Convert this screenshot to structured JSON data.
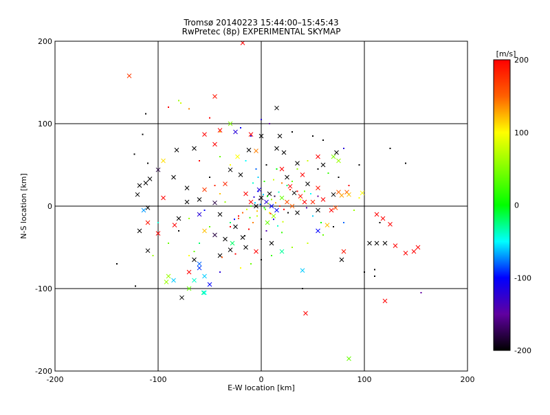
{
  "chart_data": {
    "type": "scatter",
    "title": "Tromsø 20140223 15:44:00–15:45:43",
    "subtitle": "RwPretec (8p) EXPERIMENTAL SKYMAP",
    "xlabel": "E-W location [km]",
    "ylabel": "N-S location [km]",
    "xlim": [
      -200,
      200
    ],
    "ylim": [
      -200,
      200
    ],
    "xticks": [
      "-200",
      "-100",
      "0",
      "100",
      "200"
    ],
    "yticks": [
      "-200",
      "-100",
      "0",
      "100",
      "200"
    ],
    "grid": [
      -100,
      0,
      100
    ],
    "colorbar": {
      "label": "[m/s]",
      "range": [
        -200,
        200
      ],
      "ticks": [
        "200",
        "100",
        "0",
        "-100",
        "-200"
      ],
      "colormap": "rainbow (black-purple-blue-cyan-green-yellow-orange-red)"
    },
    "series": [
      {
        "marker": "x",
        "points": [
          [
            -128,
            158,
            170
          ],
          [
            -45,
            133,
            190
          ],
          [
            -18,
            198,
            200
          ],
          [
            15,
            119,
            -200
          ],
          [
            -95,
            55,
            110
          ],
          [
            -82,
            68,
            -200
          ],
          [
            -65,
            70,
            -200
          ],
          [
            -108,
            33,
            -200
          ],
          [
            -112,
            28,
            -200
          ],
          [
            -120,
            14,
            -200
          ],
          [
            -118,
            25,
            -200
          ],
          [
            -100,
            44,
            -180
          ],
          [
            -85,
            35,
            -200
          ],
          [
            -72,
            22,
            -200
          ],
          [
            -60,
            8,
            -200
          ],
          [
            -55,
            20,
            170
          ],
          [
            -40,
            -10,
            -200
          ],
          [
            -35,
            27,
            180
          ],
          [
            -45,
            4,
            -180
          ],
          [
            -30,
            44,
            -200
          ],
          [
            -23,
            60,
            100
          ],
          [
            -20,
            38,
            -200
          ],
          [
            -12,
            68,
            -200
          ],
          [
            -5,
            67,
            140
          ],
          [
            -25,
            -25,
            -200
          ],
          [
            -35,
            -40,
            -200
          ],
          [
            -15,
            -50,
            -200
          ],
          [
            -30,
            -53,
            -200
          ],
          [
            -45,
            -35,
            -180
          ],
          [
            -55,
            -30,
            120
          ],
          [
            -60,
            -10,
            -120
          ],
          [
            -110,
            -54,
            -200
          ],
          [
            -114,
            -5,
            -70
          ],
          [
            -118,
            -30,
            -200
          ],
          [
            -110,
            -20,
            190
          ],
          [
            -100,
            -33,
            200
          ],
          [
            -84,
            -23,
            200
          ],
          [
            -65,
            -65,
            -200
          ],
          [
            -60,
            -75,
            -90
          ],
          [
            -55,
            -85,
            -60
          ],
          [
            -65,
            -90,
            -40
          ],
          [
            -70,
            -100,
            40
          ],
          [
            -50,
            -95,
            -100
          ],
          [
            -90,
            -85,
            60
          ],
          [
            -92,
            -92,
            60
          ],
          [
            -85,
            -90,
            -60
          ],
          [
            -55,
            -105,
            -50
          ],
          [
            -77,
            -111,
            -200
          ],
          [
            -56,
            -105,
            -30
          ],
          [
            -70,
            -80,
            200
          ],
          [
            -60,
            -70,
            -80
          ],
          [
            -40,
            -60,
            -200
          ],
          [
            -28,
            -45,
            -20
          ],
          [
            -18,
            -38,
            -200
          ],
          [
            -5,
            -55,
            200
          ],
          [
            10,
            -45,
            -200
          ],
          [
            20,
            -55,
            -30
          ],
          [
            40,
            -78,
            -60
          ],
          [
            43,
            -130,
            200
          ],
          [
            85,
            -185,
            40
          ],
          [
            78,
            -65,
            -200
          ],
          [
            80,
            -55,
            190
          ],
          [
            105,
            -45,
            -200
          ],
          [
            112,
            -45,
            -200
          ],
          [
            120,
            -45,
            -200
          ],
          [
            130,
            -48,
            200
          ],
          [
            140,
            -57,
            200
          ],
          [
            148,
            -55,
            200
          ],
          [
            152,
            -50,
            200
          ],
          [
            120,
            -115,
            200
          ],
          [
            125,
            -22,
            200
          ],
          [
            118,
            -15,
            200
          ],
          [
            112,
            -10,
            200
          ],
          [
            55,
            -30,
            -100
          ],
          [
            64,
            -23,
            120
          ],
          [
            60,
            8,
            200
          ],
          [
            70,
            14,
            -200
          ],
          [
            75,
            17,
            150
          ],
          [
            78,
            13,
            130
          ],
          [
            83,
            17,
            150
          ],
          [
            85,
            14,
            120
          ],
          [
            98,
            16,
            100
          ],
          [
            68,
            -5,
            200
          ],
          [
            72,
            -2,
            160
          ],
          [
            55,
            22,
            190
          ],
          [
            45,
            27,
            -200
          ],
          [
            28,
            24,
            200
          ],
          [
            32,
            16,
            -200
          ],
          [
            38,
            12,
            190
          ],
          [
            42,
            5,
            200
          ],
          [
            50,
            5,
            180
          ],
          [
            55,
            -5,
            -200
          ],
          [
            25,
            35,
            -200
          ],
          [
            20,
            45,
            200
          ],
          [
            35,
            52,
            -200
          ],
          [
            40,
            38,
            200
          ],
          [
            55,
            60,
            200
          ],
          [
            60,
            50,
            -200
          ],
          [
            70,
            60,
            50
          ],
          [
            75,
            55,
            60
          ],
          [
            73,
            65,
            -200
          ],
          [
            22,
            65,
            -200
          ],
          [
            15,
            70,
            -200
          ],
          [
            18,
            85,
            -200
          ],
          [
            0,
            85,
            -200
          ],
          [
            -10,
            87,
            200
          ],
          [
            -40,
            92,
            200
          ],
          [
            -45,
            75,
            200
          ],
          [
            -55,
            87,
            200
          ],
          [
            -30,
            100,
            50
          ],
          [
            -25,
            90,
            -120
          ],
          [
            -110,
            -2,
            -200
          ],
          [
            -80,
            -15,
            -200
          ],
          [
            -72,
            5,
            -200
          ],
          [
            -95,
            10,
            200
          ],
          [
            0,
            10,
            -200
          ],
          [
            5,
            5,
            -120
          ],
          [
            10,
            0,
            -100
          ],
          [
            -5,
            0,
            -200
          ],
          [
            15,
            -5,
            -100
          ],
          [
            20,
            10,
            40
          ],
          [
            25,
            5,
            160
          ],
          [
            8,
            15,
            -200
          ],
          [
            -10,
            5,
            200
          ],
          [
            12,
            -12,
            60
          ],
          [
            30,
            0,
            150
          ],
          [
            35,
            -8,
            -200
          ],
          [
            -2,
            20,
            -120
          ],
          [
            6,
            -20,
            40
          ],
          [
            -15,
            15,
            200
          ]
        ]
      },
      {
        "marker": "dot",
        "points": [
          [
            -112,
            112,
            -200
          ],
          [
            -115,
            87,
            -200
          ],
          [
            -123,
            63,
            -200
          ],
          [
            -110,
            52,
            -200
          ],
          [
            -80,
            128,
            60
          ],
          [
            -78,
            125,
            80
          ],
          [
            -70,
            118,
            140
          ],
          [
            -90,
            120,
            200
          ],
          [
            -50,
            107,
            200
          ],
          [
            -40,
            90,
            120
          ],
          [
            -20,
            95,
            -100
          ],
          [
            -10,
            85,
            -120
          ],
          [
            0,
            105,
            -120
          ],
          [
            8,
            100,
            -150
          ],
          [
            30,
            90,
            -200
          ],
          [
            50,
            85,
            -200
          ],
          [
            60,
            80,
            -200
          ],
          [
            80,
            70,
            -120
          ],
          [
            95,
            50,
            -200
          ],
          [
            125,
            70,
            -200
          ],
          [
            140,
            52,
            -200
          ],
          [
            -140,
            -70,
            -200
          ],
          [
            -122,
            -97,
            -200
          ],
          [
            40,
            -100,
            -200
          ],
          [
            100,
            -80,
            -200
          ],
          [
            110,
            -85,
            -200
          ],
          [
            110,
            -77,
            -200
          ],
          [
            115,
            -20,
            -200
          ],
          [
            155,
            -105,
            -150
          ],
          [
            -40,
            -80,
            -120
          ],
          [
            -20,
            -75,
            100
          ],
          [
            -10,
            -70,
            40
          ],
          [
            0,
            -65,
            -200
          ],
          [
            10,
            -60,
            20
          ],
          [
            30,
            -50,
            60
          ],
          [
            45,
            -45,
            80
          ],
          [
            -30,
            -25,
            200
          ],
          [
            -22,
            -15,
            160
          ],
          [
            -50,
            -25,
            40
          ],
          [
            -70,
            -15,
            60
          ],
          [
            -80,
            -30,
            -200
          ],
          [
            -90,
            -45,
            40
          ],
          [
            -100,
            -20,
            -40
          ],
          [
            -105,
            -60,
            60
          ],
          [
            -60,
            55,
            200
          ],
          [
            -40,
            60,
            40
          ],
          [
            -30,
            50,
            100
          ],
          [
            -15,
            55,
            -50
          ],
          [
            -5,
            45,
            -80
          ],
          [
            5,
            50,
            -200
          ],
          [
            15,
            45,
            0
          ],
          [
            35,
            45,
            60
          ],
          [
            45,
            55,
            80
          ],
          [
            55,
            45,
            -200
          ],
          [
            65,
            40,
            20
          ],
          [
            75,
            35,
            -200
          ],
          [
            85,
            25,
            200
          ],
          [
            95,
            10,
            100
          ],
          [
            90,
            -5,
            60
          ],
          [
            80,
            -20,
            -80
          ],
          [
            70,
            -25,
            -200
          ],
          [
            60,
            -35,
            40
          ],
          [
            -3,
            35,
            -60
          ],
          [
            -8,
            28,
            -40
          ],
          [
            3,
            30,
            20
          ],
          [
            12,
            32,
            80
          ],
          [
            20,
            28,
            140
          ],
          [
            28,
            20,
            180
          ],
          [
            35,
            18,
            200
          ],
          [
            42,
            18,
            40
          ],
          [
            48,
            15,
            -50
          ],
          [
            55,
            12,
            -150
          ],
          [
            -3,
            18,
            -100
          ],
          [
            2,
            14,
            -60
          ],
          [
            6,
            12,
            0
          ],
          [
            10,
            8,
            60
          ],
          [
            14,
            4,
            120
          ],
          [
            18,
            0,
            180
          ],
          [
            22,
            -4,
            200
          ],
          [
            26,
            -8,
            -200
          ],
          [
            -2,
            8,
            -180
          ],
          [
            -6,
            4,
            -60
          ],
          [
            -10,
            0,
            20
          ],
          [
            -14,
            -4,
            80
          ],
          [
            -18,
            -8,
            150
          ],
          [
            -22,
            -12,
            200
          ],
          [
            -26,
            -16,
            -100
          ],
          [
            -30,
            -20,
            -20
          ],
          [
            4,
            -4,
            40
          ],
          [
            8,
            -8,
            100
          ],
          [
            12,
            -16,
            -120
          ],
          [
            16,
            -24,
            -40
          ],
          [
            20,
            -32,
            20
          ],
          [
            -4,
            -12,
            80
          ],
          [
            -8,
            -20,
            140
          ],
          [
            -12,
            -28,
            200
          ],
          [
            -16,
            -36,
            -200
          ],
          [
            25,
            25,
            -20
          ],
          [
            30,
            30,
            40
          ],
          [
            38,
            8,
            100
          ],
          [
            44,
            -2,
            -140
          ],
          [
            50,
            -12,
            -60
          ],
          [
            58,
            -20,
            0
          ],
          [
            -35,
            5,
            60
          ],
          [
            -40,
            15,
            120
          ],
          [
            -45,
            25,
            180
          ],
          [
            -50,
            35,
            -200
          ],
          [
            -55,
            -5,
            -100
          ],
          [
            -60,
            -45,
            -20
          ],
          [
            -65,
            -55,
            40
          ],
          [
            -70,
            -60,
            100
          ],
          [
            -38,
            -62,
            160
          ],
          [
            -25,
            -58,
            200
          ],
          [
            0,
            -40,
            -200
          ],
          [
            5,
            -30,
            -140
          ],
          [
            -1,
            2,
            -80
          ],
          [
            3,
            -2,
            0
          ],
          [
            7,
            3,
            60
          ],
          [
            -4,
            -6,
            120
          ],
          [
            9,
            -9,
            180
          ],
          [
            13,
            12,
            -180
          ],
          [
            -7,
            11,
            -120
          ],
          [
            17,
            17,
            -40
          ],
          [
            -11,
            -14,
            20
          ],
          [
            21,
            -19,
            80
          ]
        ]
      }
    ]
  }
}
